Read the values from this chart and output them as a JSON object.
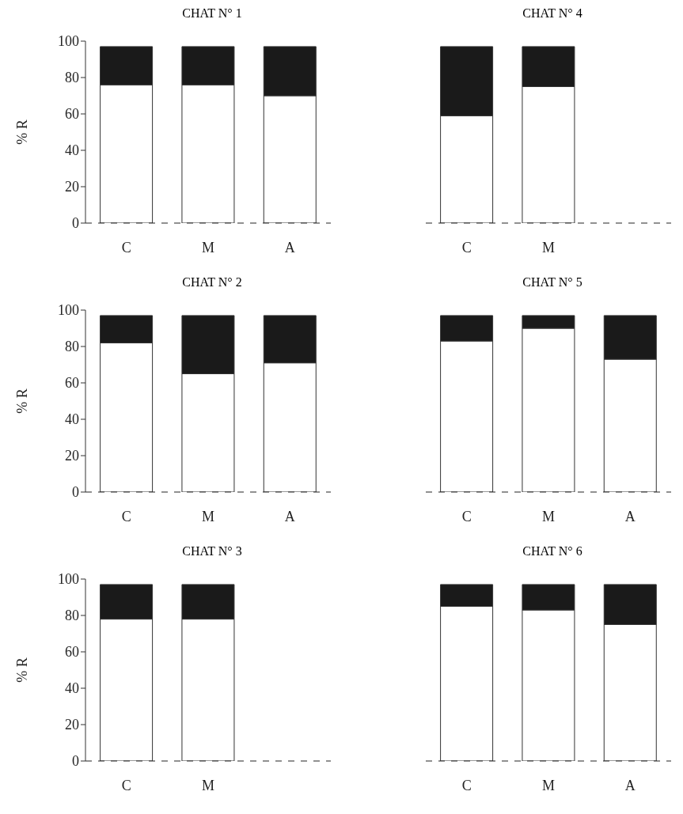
{
  "chart_data": [
    {
      "type": "bar",
      "title": "CHAT N° 1",
      "ylabel": "% R",
      "categories": [
        "C",
        "M",
        "A"
      ],
      "stacked": true,
      "ylim": [
        0,
        100
      ],
      "yticks": [
        0,
        20,
        40,
        60,
        80,
        100
      ],
      "ref_lines": [
        {
          "axis": "y",
          "value": 0,
          "line_style": "dashed",
          "color": "#222222"
        }
      ],
      "series": [
        {
          "color": "#ffffff",
          "values": [
            76,
            76,
            70
          ]
        },
        {
          "color": "#1a1a1a",
          "values": [
            21,
            21,
            27
          ]
        }
      ]
    },
    {
      "type": "bar",
      "title": "CHAT N° 4",
      "categories": [
        "C",
        "M",
        null
      ],
      "stacked": true,
      "ylim": [
        0,
        100
      ],
      "tick_labels": "x",
      "ref_lines": [
        {
          "axis": "y",
          "value": 0,
          "line_style": "dashed",
          "color": "#222222"
        }
      ],
      "series": [
        {
          "color": "#ffffff",
          "values": [
            59,
            75,
            null
          ]
        },
        {
          "color": "#1a1a1a",
          "values": [
            38,
            22,
            null
          ]
        }
      ]
    },
    {
      "type": "bar",
      "title": "CHAT N° 2",
      "ylabel": "% R",
      "categories": [
        "C",
        "M",
        "A"
      ],
      "stacked": true,
      "ylim": [
        0,
        100
      ],
      "yticks": [
        0,
        20,
        40,
        60,
        80,
        100
      ],
      "ref_lines": [
        {
          "axis": "y",
          "value": 0,
          "line_style": "dashed",
          "color": "#222222"
        }
      ],
      "series": [
        {
          "color": "#ffffff",
          "values": [
            82,
            65,
            71
          ]
        },
        {
          "color": "#1a1a1a",
          "values": [
            15,
            32,
            26
          ]
        }
      ]
    },
    {
      "type": "bar",
      "title": "CHAT N° 5",
      "categories": [
        "C",
        "M",
        "A"
      ],
      "stacked": true,
      "ylim": [
        0,
        100
      ],
      "tick_labels": "x",
      "ref_lines": [
        {
          "axis": "y",
          "value": 0,
          "line_style": "dashed",
          "color": "#222222"
        }
      ],
      "series": [
        {
          "color": "#ffffff",
          "values": [
            83,
            90,
            73
          ]
        },
        {
          "color": "#1a1a1a",
          "values": [
            14,
            7,
            24
          ]
        }
      ]
    },
    {
      "type": "bar",
      "title": "CHAT N° 3",
      "ylabel": "% R",
      "categories": [
        "C",
        "M",
        null
      ],
      "stacked": true,
      "ylim": [
        0,
        100
      ],
      "yticks": [
        0,
        20,
        40,
        60,
        80,
        100
      ],
      "ref_lines": [
        {
          "axis": "y",
          "value": 0,
          "line_style": "dashed",
          "color": "#222222"
        }
      ],
      "series": [
        {
          "color": "#ffffff",
          "values": [
            78,
            78,
            null
          ]
        },
        {
          "color": "#1a1a1a",
          "values": [
            19,
            19,
            null
          ]
        }
      ]
    },
    {
      "type": "bar",
      "title": "CHAT N° 6",
      "categories": [
        "C",
        "M",
        "A"
      ],
      "stacked": true,
      "ylim": [
        0,
        100
      ],
      "tick_labels": "x",
      "ref_lines": [
        {
          "axis": "y",
          "value": 0,
          "line_style": "dashed",
          "color": "#222222"
        }
      ],
      "series": [
        {
          "color": "#ffffff",
          "values": [
            85,
            83,
            75
          ]
        },
        {
          "color": "#1a1a1a",
          "values": [
            12,
            14,
            22
          ]
        }
      ]
    }
  ]
}
